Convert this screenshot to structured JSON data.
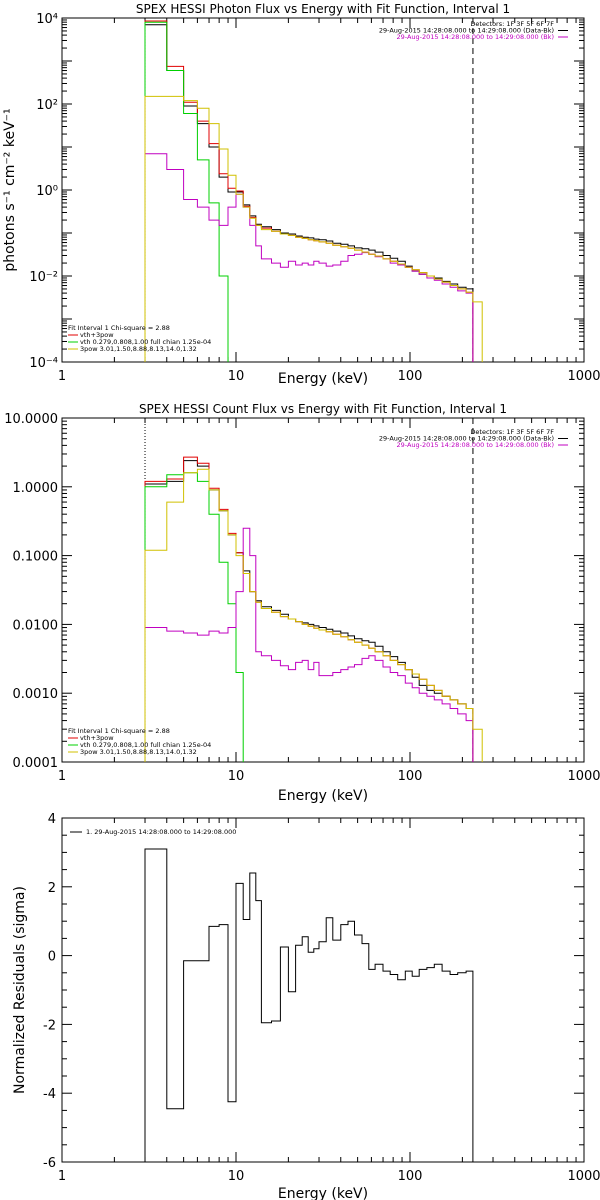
{
  "chart_data": [
    {
      "type": "line",
      "title": "SPEX HESSI Photon Flux vs Energy with Fit Function, Interval 1",
      "xlabel": "Energy (keV)",
      "ylabel": "photons s⁻¹ cm⁻² keV⁻¹",
      "x_scale": "log",
      "y_scale": "log",
      "xlim": [
        1,
        1000
      ],
      "ylim": [
        0.0001,
        10000
      ],
      "x_ticks": [
        "1",
        "10",
        "100",
        "1000"
      ],
      "y_ticks": [
        "10⁻⁴",
        "10⁻²",
        "10⁰",
        "10²",
        "10⁴"
      ],
      "vlines": [
        3.0,
        230
      ],
      "header": [
        {
          "text": "Detectors: 1F 3F 5F 6F 7F",
          "color": "#000000"
        },
        {
          "text": "29-Aug-2015 14:28:08.000 to 14:29:08.000 (Data-Bk)",
          "color": "#000000"
        },
        {
          "text": "29-Aug-2015 14:28:08.000 to 14:29:08.000 (Bk)",
          "color": "#c000c0"
        }
      ],
      "legend": [
        {
          "text": "Fit Interval 1   Chi-square = 2.88",
          "color": "#000000"
        },
        {
          "text": "vth+3pow",
          "color": "#e00000"
        },
        {
          "text": "vth 0.279,0.808,1.00  full chian 1.25e-04",
          "color": "#00d000"
        },
        {
          "text": "3pow 3.01,1.50,8.88,8.13,14.0,1.32",
          "color": "#d0c000"
        }
      ],
      "series": [
        {
          "color": "#000000",
          "edges": [
            3,
            4,
            5,
            6,
            7,
            8,
            9,
            10,
            11,
            12,
            13,
            14,
            16,
            18,
            20,
            22,
            24,
            26,
            28,
            30,
            33,
            36,
            40,
            44,
            48,
            53,
            58,
            63,
            70,
            77,
            85,
            94,
            103,
            113,
            125,
            138,
            153,
            170,
            188,
            210,
            230
          ],
          "values": [
            7000,
            600,
            90,
            35,
            10,
            2.0,
            0.9,
            0.9,
            0.45,
            0.25,
            0.16,
            0.14,
            0.12,
            0.1,
            0.095,
            0.085,
            0.08,
            0.077,
            0.072,
            0.07,
            0.065,
            0.058,
            0.055,
            0.05,
            0.045,
            0.043,
            0.04,
            0.036,
            0.03,
            0.026,
            0.022,
            0.017,
            0.013,
            0.011,
            0.01,
            0.009,
            0.0075,
            0.0065,
            0.0055,
            0.005
          ]
        },
        {
          "color": "#e00000",
          "edges": [
            3,
            4,
            5,
            6,
            7,
            8,
            9,
            10,
            11,
            12,
            13,
            14,
            16,
            18,
            20,
            22,
            24,
            26,
            28,
            30,
            33,
            36,
            40,
            44,
            48,
            53,
            58,
            63,
            70,
            77,
            85,
            94,
            103,
            113,
            125,
            138,
            153,
            170,
            188,
            210,
            230
          ],
          "values": [
            8500,
            750,
            110,
            40,
            12,
            2.4,
            1.1,
            0.95,
            0.42,
            0.23,
            0.15,
            0.13,
            0.11,
            0.095,
            0.088,
            0.08,
            0.075,
            0.07,
            0.066,
            0.062,
            0.058,
            0.052,
            0.048,
            0.044,
            0.04,
            0.036,
            0.032,
            0.029,
            0.025,
            0.022,
            0.019,
            0.016,
            0.014,
            0.012,
            0.01,
            0.0085,
            0.0072,
            0.006,
            0.005,
            0.0042
          ]
        },
        {
          "color": "#00d000",
          "edges": [
            3,
            4,
            5,
            6,
            7,
            8,
            9
          ],
          "values": [
            8000,
            600,
            60,
            5,
            0.5,
            0.01
          ]
        },
        {
          "color": "#c000c0",
          "edges": [
            3,
            4,
            5,
            6,
            7,
            8,
            9,
            10,
            11,
            12,
            13,
            14,
            16,
            18,
            20,
            22,
            24,
            26,
            28,
            30,
            33,
            36,
            40,
            44,
            48,
            53,
            58,
            63,
            70,
            77,
            85,
            94,
            103,
            113,
            125,
            138,
            153,
            170,
            188,
            210,
            230
          ],
          "values": [
            7,
            3,
            0.6,
            0.4,
            0.2,
            0.15,
            0.4,
            0.8,
            0.4,
            0.15,
            0.05,
            0.025,
            0.02,
            0.016,
            0.022,
            0.018,
            0.02,
            0.018,
            0.022,
            0.02,
            0.017,
            0.018,
            0.022,
            0.03,
            0.032,
            0.035,
            0.032,
            0.028,
            0.025,
            0.02,
            0.018,
            0.016,
            0.013,
            0.011,
            0.009,
            0.008,
            0.0065,
            0.0055,
            0.0045,
            0.004
          ]
        },
        {
          "color": "#d0c000",
          "edges": [
            3,
            4,
            5,
            6,
            7,
            8,
            9,
            10,
            11,
            12,
            13,
            14,
            16,
            18,
            20,
            22,
            24,
            26,
            28,
            30,
            33,
            36,
            40,
            44,
            48,
            53,
            58,
            63,
            70,
            77,
            85,
            94,
            103,
            113,
            125,
            138,
            153,
            170,
            188,
            210,
            230,
            260,
            290
          ],
          "values": [
            150,
            150,
            120,
            80,
            35,
            9,
            2.2,
            0.8,
            0.4,
            0.22,
            0.15,
            0.12,
            0.11,
            0.095,
            0.088,
            0.08,
            0.075,
            0.07,
            0.066,
            0.062,
            0.058,
            0.052,
            0.048,
            0.044,
            0.04,
            0.036,
            0.032,
            0.029,
            0.025,
            0.022,
            0.019,
            0.016,
            0.014,
            0.012,
            0.01,
            0.0085,
            0.0072,
            0.006,
            0.005,
            0.0042,
            0.0025,
            8e-05
          ]
        }
      ]
    },
    {
      "type": "line",
      "title": "SPEX HESSI Count Flux vs Energy with Fit Function, Interval 1",
      "xlabel": "Energy (keV)",
      "ylabel": "",
      "x_scale": "log",
      "y_scale": "log",
      "xlim": [
        1,
        1000
      ],
      "ylim": [
        0.0001,
        10
      ],
      "x_ticks": [
        "1",
        "10",
        "100",
        "1000"
      ],
      "y_ticks": [
        "0.0001",
        "0.0010",
        "0.0100",
        "0.1000",
        "1.0000",
        "10.0000"
      ],
      "vlines": [
        3.0,
        230
      ],
      "header": [
        {
          "text": "Detectors: 1F 3F 5F 6F 7F",
          "color": "#000000"
        },
        {
          "text": "29-Aug-2015 14:28:08.000 to 14:29:08.000 (Data-Bk)",
          "color": "#000000"
        },
        {
          "text": "29-Aug-2015 14:28:08.000 to 14:29:08.000 (Bk)",
          "color": "#c000c0"
        }
      ],
      "legend": [
        {
          "text": "Fit Interval 1   Chi-square = 2.88",
          "color": "#000000"
        },
        {
          "text": "vth+3pow",
          "color": "#e00000"
        },
        {
          "text": "vth 0.279,0.808,1.00  full chian 1.25e-04",
          "color": "#00d000"
        },
        {
          "text": "3pow 3.01,1.50,8.88,8.13,14.0,1.32",
          "color": "#d0c000"
        }
      ],
      "series": [
        {
          "color": "#000000",
          "edges": [
            3,
            4,
            5,
            6,
            7,
            8,
            9,
            10,
            11,
            12,
            13,
            14,
            16,
            18,
            20,
            22,
            24,
            26,
            28,
            30,
            33,
            36,
            40,
            44,
            48,
            53,
            58,
            63,
            70,
            77,
            85,
            94,
            103,
            113,
            125,
            138,
            153,
            170,
            188,
            210,
            230
          ],
          "values": [
            1.1,
            1.2,
            2.4,
            2.0,
            0.9,
            0.45,
            0.2,
            0.11,
            0.06,
            0.03,
            0.022,
            0.018,
            0.016,
            0.014,
            0.012,
            0.011,
            0.0105,
            0.01,
            0.0095,
            0.009,
            0.0085,
            0.008,
            0.0075,
            0.0068,
            0.0062,
            0.0058,
            0.0055,
            0.0048,
            0.004,
            0.0034,
            0.0028,
            0.0022,
            0.0017,
            0.0013,
            0.0011,
            0.001,
            0.0009,
            0.0008,
            0.0007,
            0.0006
          ]
        },
        {
          "color": "#e00000",
          "edges": [
            3,
            4,
            5,
            6,
            7,
            8,
            9,
            10,
            11,
            12,
            13,
            14,
            16,
            18,
            20,
            22,
            24,
            26,
            28,
            30,
            33,
            36,
            40,
            44,
            48,
            53,
            58,
            63,
            70,
            77,
            85,
            94,
            103,
            113,
            125,
            138,
            153,
            170,
            188,
            210,
            230
          ],
          "values": [
            1.2,
            1.3,
            2.7,
            2.2,
            0.95,
            0.47,
            0.21,
            0.11,
            0.055,
            0.03,
            0.021,
            0.017,
            0.015,
            0.013,
            0.012,
            0.011,
            0.01,
            0.0094,
            0.0088,
            0.0083,
            0.0078,
            0.0072,
            0.0066,
            0.006,
            0.0055,
            0.005,
            0.0045,
            0.004,
            0.0035,
            0.003,
            0.0026,
            0.0022,
            0.0019,
            0.0016,
            0.0013,
            0.0011,
            0.0009,
            0.0008,
            0.0007,
            0.0006
          ]
        },
        {
          "color": "#00d000",
          "edges": [
            3,
            4,
            5,
            6,
            7,
            8,
            9,
            10,
            11
          ],
          "values": [
            1.0,
            1.5,
            1.6,
            1.2,
            0.4,
            0.08,
            0.02,
            0.002
          ]
        },
        {
          "color": "#c000c0",
          "edges": [
            3,
            4,
            5,
            6,
            7,
            8,
            9,
            10,
            11,
            12,
            13,
            14,
            16,
            18,
            20,
            22,
            24,
            26,
            28,
            30,
            33,
            36,
            40,
            44,
            48,
            53,
            58,
            63,
            70,
            77,
            85,
            94,
            103,
            113,
            125,
            138,
            153,
            170,
            188,
            210,
            230
          ],
          "values": [
            0.009,
            0.008,
            0.0075,
            0.007,
            0.008,
            0.0075,
            0.009,
            0.03,
            0.25,
            0.1,
            0.004,
            0.0035,
            0.003,
            0.0025,
            0.0022,
            0.0028,
            0.003,
            0.0022,
            0.0028,
            0.0018,
            0.0018,
            0.002,
            0.0022,
            0.0024,
            0.0026,
            0.0032,
            0.0035,
            0.003,
            0.0024,
            0.002,
            0.0018,
            0.0014,
            0.0012,
            0.001,
            0.0009,
            0.0008,
            0.0007,
            0.0006,
            0.0005,
            0.0004
          ]
        },
        {
          "color": "#d0c000",
          "edges": [
            3,
            4,
            5,
            6,
            7,
            8,
            9,
            10,
            11,
            12,
            13,
            14,
            16,
            18,
            20,
            22,
            24,
            26,
            28,
            30,
            33,
            36,
            40,
            44,
            48,
            53,
            58,
            63,
            70,
            77,
            85,
            94,
            103,
            113,
            125,
            138,
            153,
            170,
            188,
            210,
            230,
            260,
            290
          ],
          "values": [
            0.12,
            0.6,
            1.6,
            1.8,
            0.9,
            0.45,
            0.2,
            0.1,
            0.055,
            0.03,
            0.021,
            0.017,
            0.015,
            0.013,
            0.012,
            0.011,
            0.01,
            0.0094,
            0.0088,
            0.0083,
            0.0078,
            0.0072,
            0.0066,
            0.006,
            0.0055,
            0.005,
            0.0045,
            0.004,
            0.0035,
            0.003,
            0.0026,
            0.0022,
            0.0019,
            0.0016,
            0.0013,
            0.0011,
            0.0009,
            0.0008,
            0.0007,
            0.0006,
            0.0003,
            8e-05
          ]
        }
      ]
    },
    {
      "type": "line",
      "title": "",
      "xlabel": "Energy (keV)",
      "ylabel": "Normalized Residuals (sigma)",
      "x_scale": "log",
      "y_scale": "linear",
      "xlim": [
        1,
        1000
      ],
      "ylim": [
        -6,
        4
      ],
      "x_ticks": [
        "1",
        "10",
        "100",
        "1000"
      ],
      "y_ticks": [
        "-6",
        "-4",
        "-2",
        "0",
        "2",
        "4"
      ],
      "legend": [
        {
          "text": "1. 29-Aug-2015 14:28:08.000 to 14:29:08.000",
          "color": "#000000"
        }
      ],
      "series": [
        {
          "color": "#000000",
          "edges": [
            3,
            4,
            5,
            6,
            7,
            8,
            9,
            10,
            11,
            12,
            13,
            14,
            16,
            18,
            20,
            22,
            24,
            26,
            28,
            30,
            33,
            36,
            40,
            44,
            48,
            53,
            58,
            63,
            70,
            77,
            85,
            94,
            103,
            113,
            125,
            138,
            153,
            170,
            188,
            210,
            230
          ],
          "values": [
            3.1,
            -4.45,
            -0.15,
            -0.15,
            0.85,
            0.9,
            -4.25,
            2.1,
            1.05,
            2.4,
            1.6,
            -1.95,
            -1.9,
            0.25,
            -1.05,
            0.3,
            0.55,
            0.1,
            0.2,
            0.4,
            1.1,
            0.45,
            0.9,
            1.0,
            0.6,
            0.35,
            -0.4,
            -0.25,
            -0.45,
            -0.55,
            -0.7,
            -0.45,
            -0.6,
            -0.4,
            -0.35,
            -0.25,
            -0.45,
            -0.55,
            -0.5,
            -0.45
          ]
        }
      ]
    }
  ]
}
